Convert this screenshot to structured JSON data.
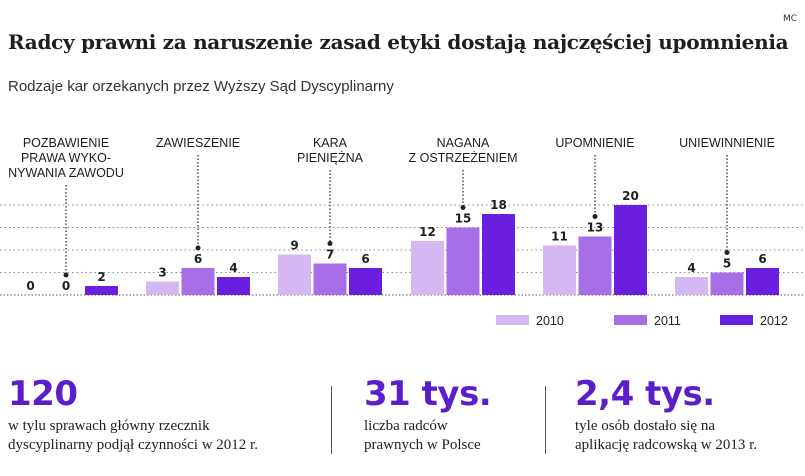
{
  "header": {
    "credit": "MC",
    "title": "Radcy prawni za naruszenie zasad etyki dostają najczęściej upomnienia",
    "subtitle": "Rodzaje kar orzekanych przez Wyższy Sąd Dyscyplinarny"
  },
  "chart_data": {
    "type": "bar",
    "title": "Rodzaje kar orzekanych przez Wyższy Sąd Dyscyplinarny",
    "xlabel": "",
    "ylabel": "",
    "ylim": [
      0,
      20
    ],
    "categories": [
      [
        "POZBAWIENIE",
        "PRAWA WYKO-",
        "NYWANIA ZAWODU"
      ],
      [
        "ZAWIESZENIE"
      ],
      [
        "KARA",
        "PIENIĘŻNA"
      ],
      [
        "NAGANA",
        "Z OSTRZEŻENIEM"
      ],
      [
        "UPOMNIENIE"
      ],
      [
        "UNIEWINNIENIE"
      ]
    ],
    "series": [
      {
        "name": "2010",
        "color": "#d4b8f2",
        "values": [
          0,
          3,
          9,
          12,
          11,
          4
        ]
      },
      {
        "name": "2011",
        "color": "#a86ee8",
        "values": [
          0,
          6,
          7,
          15,
          13,
          5
        ]
      },
      {
        "name": "2012",
        "color": "#6a1ee0",
        "values": [
          2,
          4,
          6,
          18,
          20,
          6
        ]
      }
    ],
    "legend": "bottom-right",
    "grid": "dotted horizontal"
  },
  "stats": [
    {
      "value": "120",
      "description": [
        "w tylu sprawach główny rzecznik",
        "dyscyplinarny podjął czynności w 2012 r."
      ]
    },
    {
      "value": "31 tys.",
      "description": [
        "liczba radców",
        "prawnych w Polsce"
      ]
    },
    {
      "value": "2,4 tys.",
      "description": [
        "tyle osób dostało się na",
        "aplikację radcowską w 2013 r."
      ]
    }
  ]
}
